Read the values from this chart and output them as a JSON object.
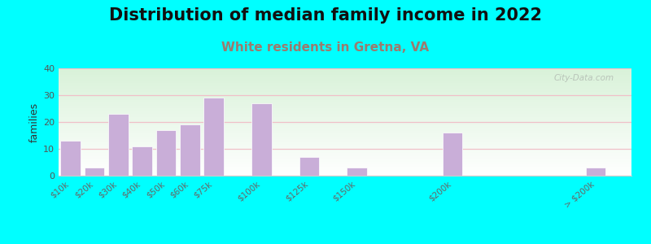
{
  "title": "Distribution of median family income in 2022",
  "subtitle": "White residents in Gretna, VA",
  "ylabel": "families",
  "categories": [
    "$10k",
    "$20k",
    "$30k",
    "$40k",
    "$50k",
    "$60k",
    "$75k",
    "$100k",
    "$125k",
    "$150k",
    "$200k",
    "> $200k"
  ],
  "values": [
    13,
    3,
    23,
    11,
    17,
    19,
    29,
    27,
    7,
    3,
    16,
    3
  ],
  "bar_positions": [
    0,
    1,
    2,
    3,
    4,
    5,
    6,
    8,
    10,
    12,
    16,
    22
  ],
  "bar_color": "#c9aed8",
  "bar_edge_color": "#ffffff",
  "background_color": "#00ffff",
  "grid_color": "#f0c0c8",
  "ylim": [
    0,
    40
  ],
  "yticks": [
    0,
    10,
    20,
    30,
    40
  ],
  "title_fontsize": 15,
  "subtitle_fontsize": 11,
  "subtitle_color": "#9b7b6e",
  "watermark": "City-Data.com"
}
